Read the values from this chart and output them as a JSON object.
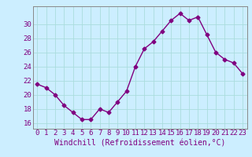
{
  "x": [
    0,
    1,
    2,
    3,
    4,
    5,
    6,
    7,
    8,
    9,
    10,
    11,
    12,
    13,
    14,
    15,
    16,
    17,
    18,
    19,
    20,
    21,
    22,
    23
  ],
  "y": [
    21.5,
    21.0,
    20.0,
    18.5,
    17.5,
    16.5,
    16.5,
    18.0,
    17.5,
    19.0,
    20.5,
    24.0,
    26.5,
    27.5,
    29.0,
    30.5,
    31.5,
    30.5,
    31.0,
    28.5,
    26.0,
    25.0,
    24.5,
    23.0
  ],
  "line_color": "#800080",
  "marker": "D",
  "marker_size": 2.5,
  "line_width": 1.0,
  "bg_color": "#cceeff",
  "grid_color": "#aadddd",
  "xlabel": "Windchill (Refroidissement éolien,°C)",
  "xlabel_color": "#800080",
  "xlabel_fontsize": 7,
  "tick_color": "#800080",
  "tick_fontsize": 6.5,
  "yticks": [
    16,
    18,
    20,
    22,
    24,
    26,
    28,
    30
  ],
  "ylim": [
    15.2,
    32.5
  ],
  "xlim": [
    -0.5,
    23.5
  ],
  "xtick_labels": [
    "0",
    "1",
    "2",
    "3",
    "4",
    "5",
    "6",
    "7",
    "8",
    "9",
    "10",
    "11",
    "12",
    "13",
    "14",
    "15",
    "16",
    "17",
    "18",
    "19",
    "20",
    "21",
    "22",
    "23"
  ]
}
